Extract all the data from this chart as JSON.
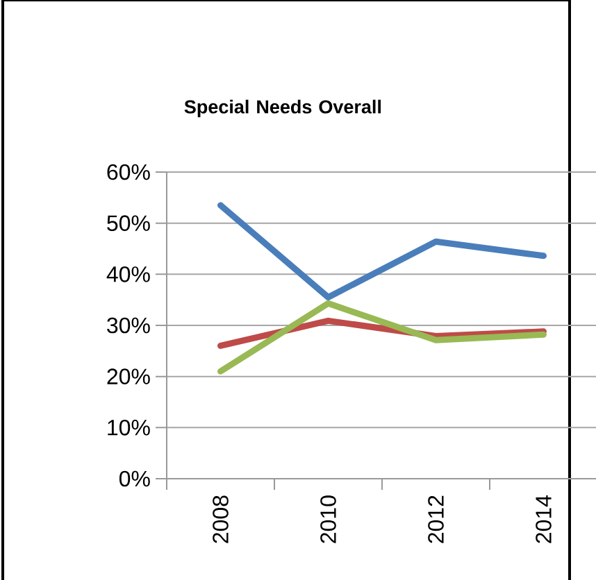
{
  "chart_data": {
    "type": "line",
    "title": "Special Needs Overall",
    "categories": [
      "2008",
      "2010",
      "2012",
      "2014"
    ],
    "series": [
      {
        "color": "#4a7ebb",
        "values": [
          53.5,
          35.5,
          46.4,
          43.6
        ]
      },
      {
        "color": "#be4b48",
        "values": [
          26.0,
          30.9,
          27.9,
          28.8
        ]
      },
      {
        "color": "#98b954",
        "values": [
          21.0,
          34.3,
          27.1,
          28.2
        ]
      }
    ],
    "ylim": [
      0,
      60
    ],
    "yticks": [
      {
        "value": 0,
        "label": "0%"
      },
      {
        "value": 10,
        "label": "10%"
      },
      {
        "value": 20,
        "label": "20%"
      },
      {
        "value": 30,
        "label": "30%"
      },
      {
        "value": 40,
        "label": "40%"
      },
      {
        "value": 50,
        "label": "50%"
      },
      {
        "value": 60,
        "label": "60%"
      }
    ],
    "grid": "y",
    "marker": "none",
    "legend": false
  }
}
